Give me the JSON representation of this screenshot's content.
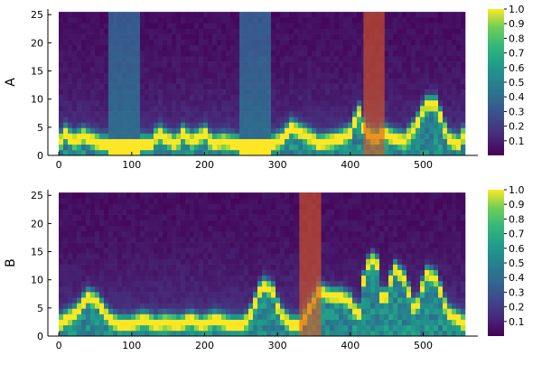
{
  "chart_data": [
    {
      "type": "heatmap",
      "ylabel": "A",
      "xlim": [
        -15,
        575
      ],
      "ylim": [
        0,
        26
      ],
      "x_ticks": [
        0,
        100,
        200,
        300,
        400,
        500
      ],
      "y_ticks": [
        0,
        5,
        10,
        15,
        20,
        25
      ],
      "x_range": [
        0,
        570
      ],
      "y_range": [
        0,
        25.5
      ],
      "colorbar": {
        "colormap": "viridis",
        "ticks": [
          0.1,
          0.2,
          0.3,
          0.4,
          0.5,
          0.6,
          0.7,
          0.8,
          0.9,
          1.0
        ]
      },
      "highlight_band": {
        "x": [
          418,
          447
        ],
        "color": "#e05a20"
      },
      "ridge": [
        [
          0,
          2
        ],
        [
          10,
          4
        ],
        [
          20,
          2.5
        ],
        [
          35,
          3.5
        ],
        [
          50,
          2.5
        ],
        [
          60,
          2
        ],
        [
          110,
          2
        ],
        [
          130,
          2
        ],
        [
          140,
          4
        ],
        [
          150,
          3
        ],
        [
          165,
          2
        ],
        [
          175,
          4
        ],
        [
          185,
          2.5
        ],
        [
          195,
          3
        ],
        [
          205,
          4
        ],
        [
          215,
          2
        ],
        [
          230,
          2.5
        ],
        [
          250,
          2
        ],
        [
          300,
          2
        ],
        [
          315,
          3
        ],
        [
          325,
          5
        ],
        [
          340,
          4
        ],
        [
          355,
          3
        ],
        [
          365,
          2
        ],
        [
          380,
          2.5
        ],
        [
          395,
          3
        ],
        [
          410,
          4
        ],
        [
          420,
          8
        ],
        [
          430,
          4
        ],
        [
          445,
          3
        ],
        [
          455,
          4
        ],
        [
          470,
          3
        ],
        [
          485,
          2.5
        ],
        [
          500,
          5
        ],
        [
          515,
          9
        ],
        [
          530,
          9
        ],
        [
          545,
          3
        ],
        [
          560,
          2
        ],
        [
          570,
          4
        ]
      ],
      "low_regions": [
        [
          68,
          112
        ],
        [
          255,
          300
        ]
      ]
    },
    {
      "type": "heatmap",
      "ylabel": "B",
      "xlim": [
        -15,
        575
      ],
      "ylim": [
        0,
        26
      ],
      "x_ticks": [
        0,
        100,
        200,
        300,
        400,
        500
      ],
      "y_ticks": [
        0,
        5,
        10,
        15,
        20,
        25
      ],
      "x_range": [
        0,
        570
      ],
      "y_range": [
        0,
        25.5
      ],
      "colorbar": {
        "colormap": "viridis",
        "ticks": [
          0.1,
          0.2,
          0.3,
          0.4,
          0.5,
          0.6,
          0.7,
          0.8,
          0.9,
          1.0
        ]
      },
      "highlight_band": {
        "x": [
          330,
          360
        ],
        "color": "#e05a20"
      },
      "ridge": [
        [
          0,
          2
        ],
        [
          10,
          3
        ],
        [
          25,
          4
        ],
        [
          40,
          7
        ],
        [
          55,
          6
        ],
        [
          70,
          3
        ],
        [
          85,
          2
        ],
        [
          100,
          2
        ],
        [
          120,
          3
        ],
        [
          135,
          2
        ],
        [
          150,
          2.5
        ],
        [
          170,
          2
        ],
        [
          185,
          3
        ],
        [
          200,
          2
        ],
        [
          220,
          3
        ],
        [
          240,
          2
        ],
        [
          260,
          2
        ],
        [
          270,
          4
        ],
        [
          285,
          9
        ],
        [
          300,
          8
        ],
        [
          310,
          4
        ],
        [
          325,
          2
        ],
        [
          340,
          2
        ],
        [
          365,
          8
        ],
        [
          380,
          7
        ],
        [
          395,
          7
        ],
        [
          410,
          6
        ],
        [
          420,
          3
        ],
        [
          430,
          12
        ],
        [
          445,
          14
        ],
        [
          455,
          5
        ],
        [
          470,
          12
        ],
        [
          485,
          10
        ],
        [
          500,
          4
        ],
        [
          515,
          11
        ],
        [
          530,
          10
        ],
        [
          545,
          4
        ],
        [
          560,
          3
        ],
        [
          570,
          2
        ]
      ],
      "low_regions": []
    }
  ]
}
